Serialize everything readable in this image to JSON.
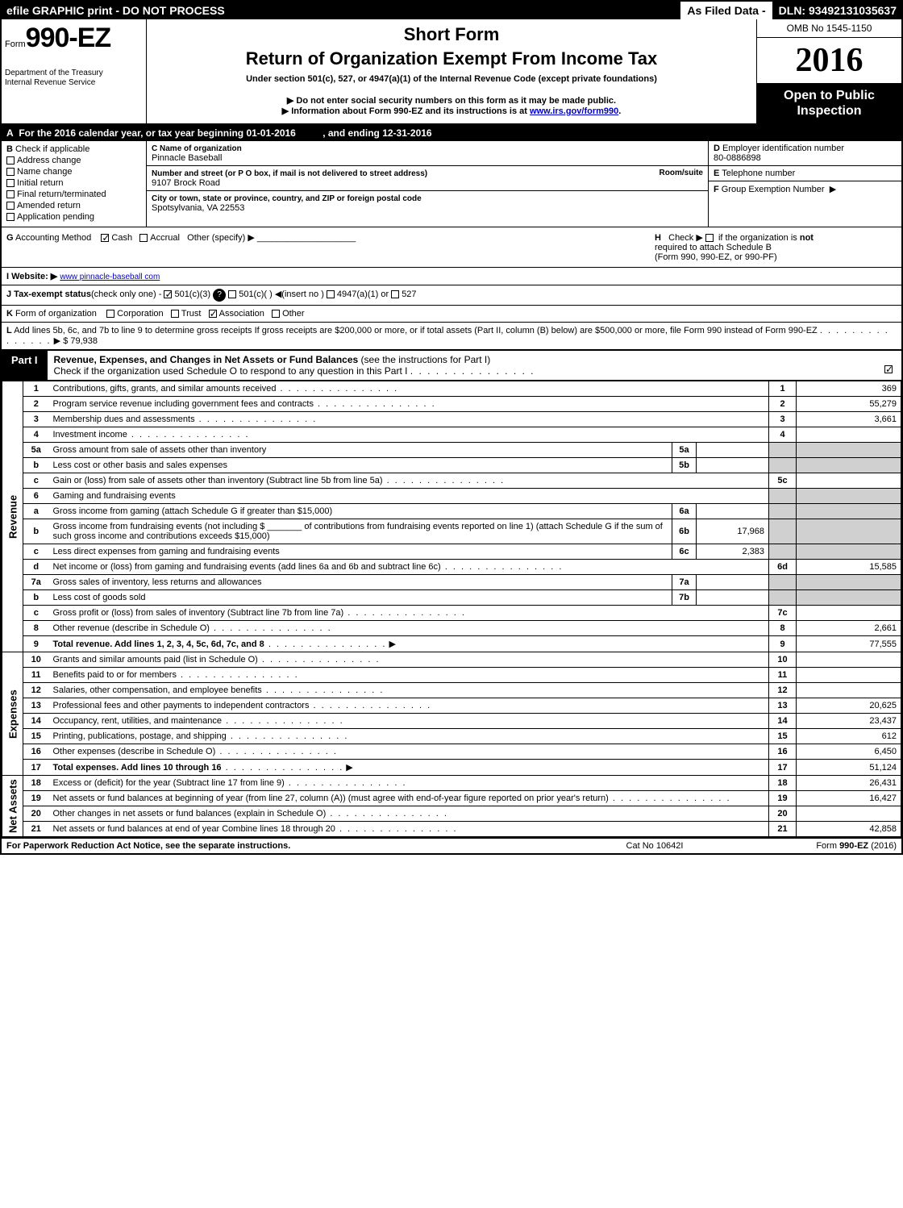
{
  "topbar": {
    "efile": "efile GRAPHIC print - DO NOT PROCESS",
    "asfiled": "As Filed Data -",
    "dln_label": "DLN:",
    "dln": "93492131035637"
  },
  "header": {
    "form_prefix": "Form",
    "form_number": "990-EZ",
    "dept1": "Department of the Treasury",
    "dept2": "Internal Revenue Service",
    "short_form": "Short Form",
    "return_title": "Return of Organization Exempt From Income Tax",
    "under_section": "Under section 501(c), 527, or 4947(a)(1) of the Internal Revenue Code (except private foundations)",
    "bullet1": "Do not enter social security numbers on this form as it may be made public.",
    "bullet2_pre": "Information about Form 990-EZ and its instructions is at ",
    "bullet2_link": "www.irs.gov/form990",
    "omb": "OMB No 1545-1150",
    "year": "2016",
    "open1": "Open to Public",
    "open2": "Inspection"
  },
  "lineA": {
    "label": "A",
    "text": "For the 2016 calendar year, or tax year beginning 01-01-2016",
    "ending_label": ", and ending",
    "ending": "12-31-2016"
  },
  "colB": {
    "hdr": "B",
    "hdr_text": "Check if applicable",
    "items": [
      "Address change",
      "Name change",
      "Initial return",
      "Final return/terminated",
      "Amended return",
      "Application pending"
    ]
  },
  "colC": {
    "c_label": "C",
    "name_label": "Name of organization",
    "name": "Pinnacle Baseball",
    "street_label": "Number and street (or P O box, if mail is not delivered to street address)",
    "room_label": "Room/suite",
    "street": "9107 Brock Road",
    "city_label": "City or town, state or province, country, and ZIP or foreign postal code",
    "city": "Spotsylvania, VA  22553"
  },
  "colDEF": {
    "d_label": "D",
    "d_text": "Employer identification number",
    "ein": "80-0886898",
    "e_label": "E",
    "e_text": "Telephone number",
    "f_label": "F",
    "f_text": "Group Exemption Number"
  },
  "rowG": {
    "label": "G",
    "text": "Accounting Method",
    "cash": "Cash",
    "accrual": "Accrual",
    "other": "Other (specify) ▶"
  },
  "rowH": {
    "label": "H",
    "text1": "Check ▶",
    "text2": "if the organization is",
    "not": "not",
    "text3": "required to attach Schedule B",
    "text4": "(Form 990, 990-EZ, or 990-PF)"
  },
  "rowI": {
    "label": "I Website: ▶",
    "value": "www pinnacle-baseball com"
  },
  "rowJ": {
    "label": "J Tax-exempt status",
    "text": "(check only one) -",
    "o1": "501(c)(3)",
    "o2": "501(c)(  ) ◀(insert no )",
    "o3": "4947(a)(1) or",
    "o4": "527"
  },
  "rowK": {
    "label": "K",
    "text": "Form of organization",
    "opts": [
      "Corporation",
      "Trust",
      "Association",
      "Other"
    ],
    "checked_index": 2
  },
  "rowL": {
    "label": "L",
    "text": "Add lines 5b, 6c, and 7b to line 9 to determine gross receipts  If gross receipts are $200,000 or more, or if total assets (Part II, column (B) below) are $500,000 or more, file Form 990 instead of Form 990-EZ",
    "amount": "$ 79,938"
  },
  "part1": {
    "tag": "Part I",
    "title": "Revenue, Expenses, and Changes in Net Assets or Fund Balances",
    "subtitle": "(see the instructions for Part I)",
    "check_text": "Check if the organization used Schedule O to respond to any question in this Part I",
    "check_checked": true
  },
  "sections": {
    "revenue": "Revenue",
    "expenses": "Expenses",
    "netassets": "Net Assets"
  },
  "lines": [
    {
      "sec": "revenue",
      "n": "1",
      "d": "Contributions, gifts, grants, and similar amounts received",
      "box": "1",
      "amt": "369"
    },
    {
      "sec": "revenue",
      "n": "2",
      "d": "Program service revenue including government fees and contracts",
      "box": "2",
      "amt": "55,279"
    },
    {
      "sec": "revenue",
      "n": "3",
      "d": "Membership dues and assessments",
      "box": "3",
      "amt": "3,661"
    },
    {
      "sec": "revenue",
      "n": "4",
      "d": "Investment income",
      "box": "4",
      "amt": ""
    },
    {
      "sec": "revenue",
      "n": "5a",
      "d": "Gross amount from sale of assets other than inventory",
      "sub": "5a",
      "subamt": "",
      "grey": true
    },
    {
      "sec": "revenue",
      "n": "b",
      "d": "Less  cost or other basis and sales expenses",
      "sub": "5b",
      "subamt": "",
      "grey": true
    },
    {
      "sec": "revenue",
      "n": "c",
      "d": "Gain or (loss) from sale of assets other than inventory (Subtract line 5b from line 5a)",
      "box": "5c",
      "amt": ""
    },
    {
      "sec": "revenue",
      "n": "6",
      "d": "Gaming and fundraising events",
      "grey": true,
      "noright": true
    },
    {
      "sec": "revenue",
      "n": "a",
      "d": "Gross income from gaming (attach Schedule G if greater than $15,000)",
      "sub": "6a",
      "subamt": "",
      "grey": true
    },
    {
      "sec": "revenue",
      "n": "b",
      "d": "Gross income from fundraising events (not including $ _______ of contributions from fundraising events reported on line 1) (attach Schedule G if the sum of such gross income and contributions exceeds $15,000)",
      "sub": "6b",
      "subamt": "17,968",
      "grey": true
    },
    {
      "sec": "revenue",
      "n": "c",
      "d": "Less  direct expenses from gaming and fundraising events",
      "sub": "6c",
      "subamt": "2,383",
      "grey": true
    },
    {
      "sec": "revenue",
      "n": "d",
      "d": "Net income or (loss) from gaming and fundraising events (add lines 6a and 6b and subtract line 6c)",
      "box": "6d",
      "amt": "15,585"
    },
    {
      "sec": "revenue",
      "n": "7a",
      "d": "Gross sales of inventory, less returns and allowances",
      "sub": "7a",
      "subamt": "",
      "grey": true
    },
    {
      "sec": "revenue",
      "n": "b",
      "d": "Less  cost of goods sold",
      "sub": "7b",
      "subamt": "",
      "grey": true
    },
    {
      "sec": "revenue",
      "n": "c",
      "d": "Gross profit or (loss) from sales of inventory (Subtract line 7b from line 7a)",
      "box": "7c",
      "amt": ""
    },
    {
      "sec": "revenue",
      "n": "8",
      "d": "Other revenue (describe in Schedule O)",
      "box": "8",
      "amt": "2,661"
    },
    {
      "sec": "revenue",
      "n": "9",
      "d": "Total revenue. Add lines 1, 2, 3, 4, 5c, 6d, 7c, and 8",
      "bold": true,
      "arrow": true,
      "box": "9",
      "amt": "77,555"
    },
    {
      "sec": "expenses",
      "n": "10",
      "d": "Grants and similar amounts paid (list in Schedule O)",
      "box": "10",
      "amt": ""
    },
    {
      "sec": "expenses",
      "n": "11",
      "d": "Benefits paid to or for members",
      "box": "11",
      "amt": ""
    },
    {
      "sec": "expenses",
      "n": "12",
      "d": "Salaries, other compensation, and employee benefits",
      "box": "12",
      "amt": ""
    },
    {
      "sec": "expenses",
      "n": "13",
      "d": "Professional fees and other payments to independent contractors",
      "box": "13",
      "amt": "20,625"
    },
    {
      "sec": "expenses",
      "n": "14",
      "d": "Occupancy, rent, utilities, and maintenance",
      "box": "14",
      "amt": "23,437"
    },
    {
      "sec": "expenses",
      "n": "15",
      "d": "Printing, publications, postage, and shipping",
      "box": "15",
      "amt": "612"
    },
    {
      "sec": "expenses",
      "n": "16",
      "d": "Other expenses (describe in Schedule O)",
      "box": "16",
      "amt": "6,450"
    },
    {
      "sec": "expenses",
      "n": "17",
      "d": "Total expenses. Add lines 10 through 16",
      "bold": true,
      "arrow": true,
      "box": "17",
      "amt": "51,124"
    },
    {
      "sec": "netassets",
      "n": "18",
      "d": "Excess or (deficit) for the year (Subtract line 17 from line 9)",
      "box": "18",
      "amt": "26,431"
    },
    {
      "sec": "netassets",
      "n": "19",
      "d": "Net assets or fund balances at beginning of year (from line 27, column (A)) (must agree with end-of-year figure reported on prior year's return)",
      "box": "19",
      "amt": "16,427"
    },
    {
      "sec": "netassets",
      "n": "20",
      "d": "Other changes in net assets or fund balances (explain in Schedule O)",
      "box": "20",
      "amt": ""
    },
    {
      "sec": "netassets",
      "n": "21",
      "d": "Net assets or fund balances at end of year  Combine lines 18 through 20",
      "box": "21",
      "amt": "42,858"
    }
  ],
  "footer": {
    "left": "For Paperwork Reduction Act Notice, see the separate instructions.",
    "mid": "Cat No  10642I",
    "right_pre": "Form ",
    "right_form": "990-EZ",
    "right_year": " (2016)"
  }
}
